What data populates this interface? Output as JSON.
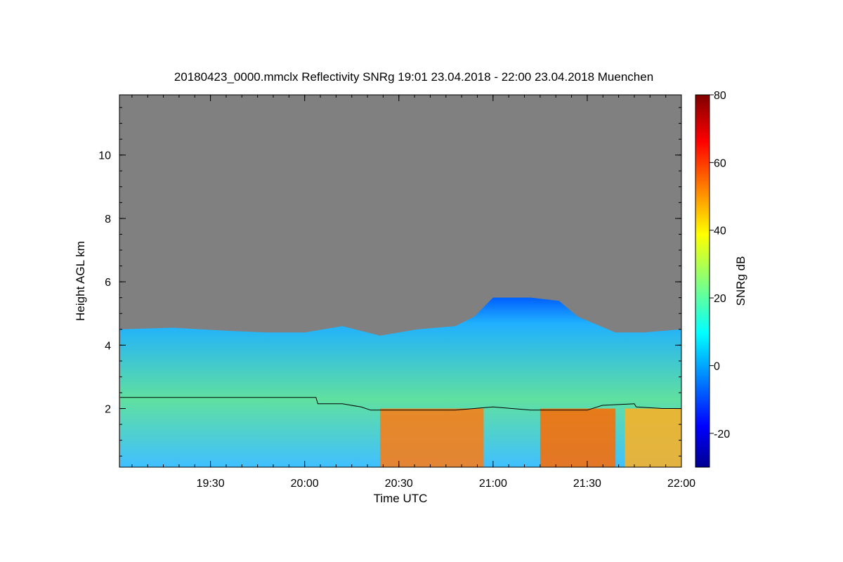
{
  "chart_data": {
    "type": "heatmap",
    "title": "20180423_0000.mmclx Reflectivity SNRg   19:01 23.04.2018 - 22:00 23.04.2018 Muenchen",
    "xlabel": "Time UTC",
    "ylabel": "Height AGL km",
    "colorbar_label": "SNRg dB",
    "x_range_hours": [
      19.0167,
      22.0
    ],
    "x_ticks": [
      {
        "value": 19.5,
        "label": "19:30"
      },
      {
        "value": 20.0,
        "label": "20:00"
      },
      {
        "value": 20.5,
        "label": "20:30"
      },
      {
        "value": 21.0,
        "label": "21:00"
      },
      {
        "value": 21.5,
        "label": "21:30"
      },
      {
        "value": 22.0,
        "label": "22:00"
      }
    ],
    "y_range_km": [
      0.15,
      11.9
    ],
    "y_ticks": [
      {
        "value": 2,
        "label": "2"
      },
      {
        "value": 4,
        "label": "4"
      },
      {
        "value": 6,
        "label": "6"
      },
      {
        "value": 8,
        "label": "8"
      },
      {
        "value": 10,
        "label": "10"
      }
    ],
    "colorbar_range_db": [
      -30,
      80
    ],
    "colorbar_ticks": [
      {
        "value": -20,
        "label": "-20"
      },
      {
        "value": 0,
        "label": "0"
      },
      {
        "value": 20,
        "label": "20"
      },
      {
        "value": 40,
        "label": "40"
      },
      {
        "value": 60,
        "label": "60"
      },
      {
        "value": 80,
        "label": "80"
      }
    ],
    "background_color": "#808080",
    "echo_top_km": [
      [
        19.02,
        4.5
      ],
      [
        19.3,
        4.55
      ],
      [
        19.6,
        4.45
      ],
      [
        19.8,
        4.4
      ],
      [
        20.0,
        4.4
      ],
      [
        20.2,
        4.6
      ],
      [
        20.4,
        4.3
      ],
      [
        20.6,
        4.5
      ],
      [
        20.8,
        4.6
      ],
      [
        20.9,
        4.9
      ],
      [
        21.0,
        5.5
      ],
      [
        21.2,
        5.5
      ],
      [
        21.35,
        5.4
      ],
      [
        21.45,
        4.9
      ],
      [
        21.65,
        4.4
      ],
      [
        21.8,
        4.4
      ],
      [
        22.0,
        4.5
      ]
    ],
    "series": [
      {
        "values": [
          [
            19.02,
            2.35
          ],
          [
            20.06,
            2.35
          ],
          [
            20.07,
            2.15
          ],
          [
            20.2,
            2.15
          ],
          [
            20.3,
            2.05
          ],
          [
            20.35,
            1.95
          ],
          [
            20.5,
            1.95
          ],
          [
            20.8,
            1.95
          ],
          [
            21.0,
            2.05
          ],
          [
            21.2,
            1.95
          ],
          [
            21.5,
            1.95
          ],
          [
            21.58,
            2.1
          ],
          [
            21.75,
            2.15
          ],
          [
            21.76,
            2.05
          ],
          [
            21.9,
            2.0
          ],
          [
            22.0,
            2.0
          ]
        ]
      }
    ]
  }
}
